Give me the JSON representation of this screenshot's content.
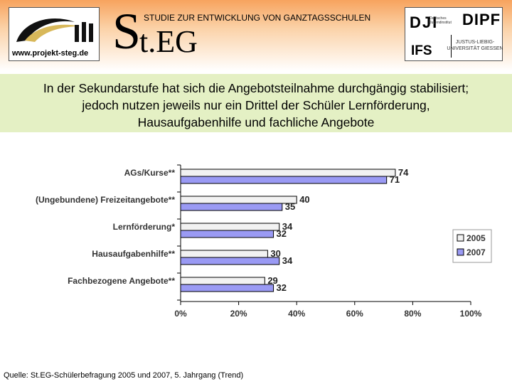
{
  "header": {
    "website": "www.projekt-steg.de",
    "study_title": "STUDIE ZUR ENTWICKLUNG VON GANZTAGSSCHULEN",
    "brand_initial": "S",
    "brand_rest": "t.EG",
    "partner_dji": "DJI",
    "partner_dji_sub": "Deutsches Jugendinstitut",
    "partner_dipf": "DIPF",
    "partner_ifs": "IFS",
    "partner_uni": "JUSTUS-LIEBIG-UNIVERSITÄT GIESSEN"
  },
  "banner": {
    "line1": "In der Sekundarstufe hat sich die Angebotsteilnahme durchgängig stabilisiert;",
    "line2": "jedoch nutzen jeweils nur ein Drittel der Schüler Lernförderung,",
    "line3": "Hausaufgabenhilfe und fachliche Angebote"
  },
  "colors": {
    "series_2005": "#f2f2f2",
    "series_2007": "#9a9af4",
    "banner": "#e4f0c4",
    "header_top": "#f7a35e"
  },
  "chart_data": {
    "type": "bar",
    "orientation": "horizontal",
    "categories": [
      "AGs/Kurse**",
      "(Ungebundene) Freizeitangebote**",
      "Lernförderung*",
      "Hausaufgabenhilfe**",
      "Fachbezogene Angebote**"
    ],
    "series": [
      {
        "name": "2005",
        "values": [
          74,
          40,
          34,
          30,
          29
        ]
      },
      {
        "name": "2007",
        "values": [
          71,
          35,
          32,
          34,
          32
        ]
      }
    ],
    "x_ticks": [
      "0%",
      "20%",
      "40%",
      "60%",
      "80%",
      "100%"
    ],
    "xlim": [
      0,
      100
    ],
    "legend_position": "right",
    "grid": false
  },
  "source": "Quelle: St.EG-Schülerbefragung 2005 und 2007, 5. Jahrgang (Trend)"
}
